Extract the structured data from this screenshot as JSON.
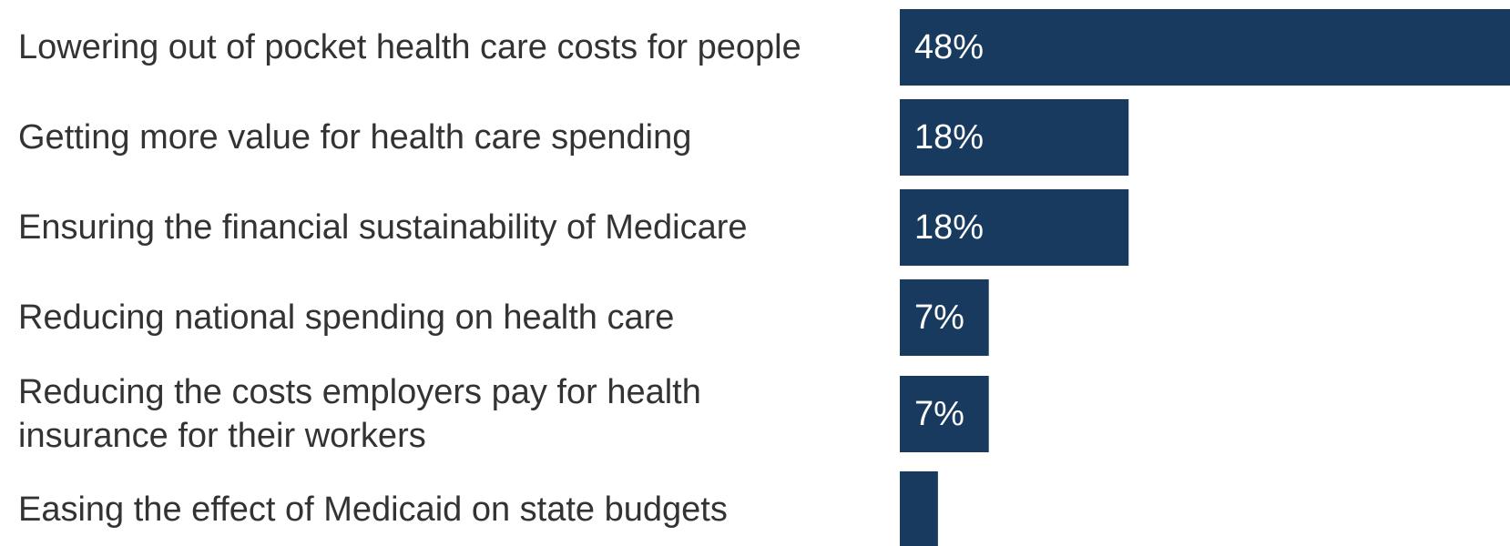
{
  "chart_data": {
    "type": "bar",
    "orientation": "horizontal",
    "categories": [
      "Lowering out of pocket health care costs for people",
      "Getting more value for health care spending",
      "Ensuring the financial sustainability of Medicare",
      "Reducing national spending on health care",
      "Reducing the costs employers pay for health insurance for their workers",
      "Easing the effect of Medicaid on state budgets"
    ],
    "category_lines": [
      [
        "Lowering out of pocket health care costs for people"
      ],
      [
        "Getting more value for health care spending"
      ],
      [
        "Ensuring the financial sustainability of Medicare"
      ],
      [
        "Reducing national spending on health care"
      ],
      [
        "Reducing the costs employers pay for health",
        "insurance for their workers"
      ],
      [
        "Easing the effect of Medicaid on state budgets"
      ]
    ],
    "values": [
      48,
      18,
      18,
      7,
      7,
      3
    ],
    "data_labels": [
      "48%",
      "18%",
      "18%",
      "7%",
      "7%",
      ""
    ],
    "title": "",
    "xlabel": "",
    "ylabel": "",
    "xlim": [
      0,
      48
    ],
    "grid": false,
    "bar_color": "#173a5e"
  }
}
